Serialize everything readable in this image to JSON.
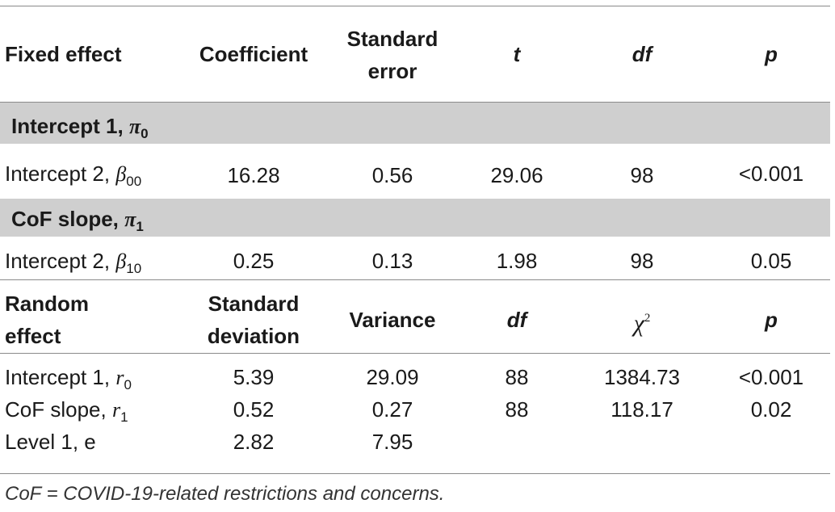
{
  "table": {
    "fixed_header": {
      "col1": "Fixed effect",
      "col2": "Coefficient",
      "col3": "Standard error",
      "col4": "t",
      "col5": "df",
      "col6": "p"
    },
    "sections": [
      {
        "label": "Intercept 1, ",
        "symbol": "π",
        "subscript": "0",
        "row": {
          "name": "Intercept 2, ",
          "symbol": "β",
          "subscript": "00",
          "coefficient": "16.28",
          "se": "0.56",
          "t": "29.06",
          "df": "98",
          "p": "<0.001"
        }
      },
      {
        "label": "CoF slope, ",
        "symbol": "π",
        "subscript": "1",
        "row": {
          "name": "Intercept 2, ",
          "symbol": "β",
          "subscript": "10",
          "coefficient": "0.25",
          "se": "0.13",
          "t": "1.98",
          "df": "98",
          "p": "0.05"
        }
      }
    ],
    "random_header": {
      "col1_line1": "Random",
      "col1_line2": "effect",
      "col2_line1": "Standard",
      "col2_line2": "deviation",
      "col3": "Variance",
      "col4": "df",
      "col5_symbol": "χ",
      "col5_sup": "2",
      "col6": "p"
    },
    "random_rows": [
      {
        "name": "Intercept 1, ",
        "symbol": "r",
        "subscript": "0",
        "sd": "5.39",
        "variance": "29.09",
        "df": "88",
        "chi2": "1384.73",
        "p": "<0.001"
      },
      {
        "name": "CoF slope, ",
        "symbol": "r",
        "subscript": "1",
        "sd": "0.52",
        "variance": "0.27",
        "df": "88",
        "chi2": "118.17",
        "p": "0.02"
      },
      {
        "name": "Level 1, e",
        "sd": "2.82",
        "variance": "7.95"
      }
    ]
  },
  "footnote": "CoF = COVID-19-related restrictions and concerns."
}
